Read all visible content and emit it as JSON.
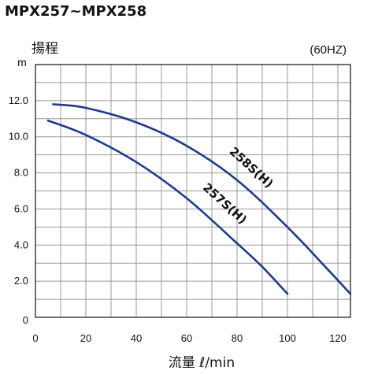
{
  "chart_data": {
    "type": "line",
    "title": "MPX257~MPX258",
    "ylabel": "揚程",
    "yunit": "m",
    "frequency_note": "(60HZ)",
    "xlabel": "流量 ℓ/min",
    "xlim": [
      0,
      125
    ],
    "ylim": [
      0,
      14
    ],
    "x_ticks": [
      0,
      20,
      40,
      60,
      80,
      100,
      120
    ],
    "x_tick_labels": [
      "0",
      "20",
      "40",
      "60",
      "80",
      "100",
      "120"
    ],
    "y_ticks": [
      0,
      2,
      4,
      6,
      8,
      10,
      12
    ],
    "y_tick_labels": [
      "0",
      "2.0",
      "4.0",
      "6.0",
      "8.0",
      "10.0",
      "12.0"
    ],
    "grid": true,
    "x_minor_step": 10,
    "y_minor_step": 1,
    "series": [
      {
        "name": "258S(H)",
        "color": "#1f3a8f",
        "x": [
          7,
          20,
          40,
          60,
          80,
          100,
          115,
          125
        ],
        "y": [
          11.8,
          11.6,
          10.8,
          9.5,
          7.6,
          5.0,
          2.8,
          1.3
        ]
      },
      {
        "name": "257S(H)",
        "color": "#1f3a8f",
        "x": [
          5,
          20,
          40,
          60,
          80,
          90,
          100
        ],
        "y": [
          10.9,
          10.1,
          8.6,
          6.6,
          4.1,
          2.8,
          1.3
        ]
      }
    ]
  }
}
